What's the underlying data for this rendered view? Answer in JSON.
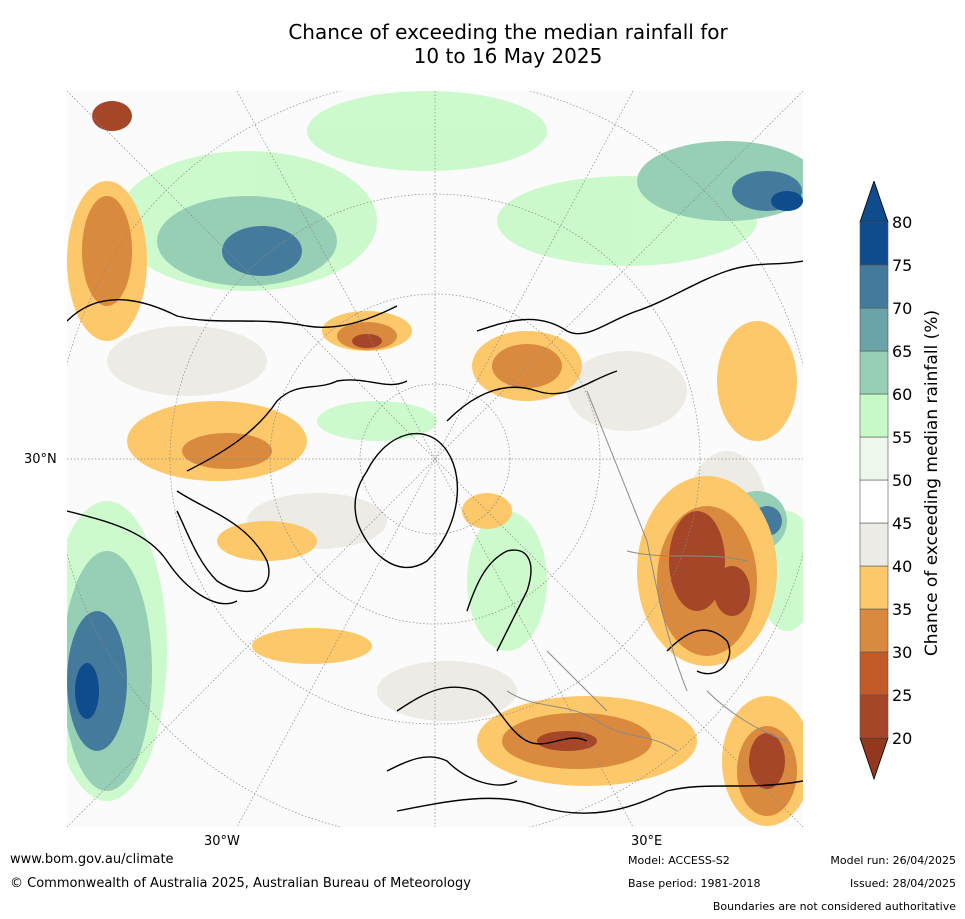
{
  "title_line1": "Chance of exceeding the median rainfall for",
  "title_line2": "10 to 16 May 2025",
  "axis_labels": {
    "lat_30n": "30°N",
    "lon_30w": "30°W",
    "lon_30e": "30°E"
  },
  "colorbar": {
    "title": "Chance of exceeding median rainfall (%)",
    "ticks": [
      "20",
      "25",
      "30",
      "35",
      "40",
      "45",
      "50",
      "55",
      "60",
      "65",
      "70",
      "75",
      "80"
    ],
    "colors": [
      "#93381e",
      "#a54628",
      "#c25a2a",
      "#d98a3e",
      "#fcc869",
      "#ecebe6",
      "#ffffff",
      "#eef7ec",
      "#c8f9c8",
      "#96cfb6",
      "#6aa3a8",
      "#447b9c",
      "#0f4c8e"
    ]
  },
  "footer": {
    "url": "www.bom.gov.au/climate",
    "copyright": "© Commonwealth of Australia 2025, Australian Bureau of Meteorology",
    "model": "Model: ACCESS-S2",
    "base_period": "Base period: 1981-2018",
    "model_run": "Model run: 26/04/2025",
    "issued": "Issued: 28/04/2025",
    "disclaimer": "Boundaries are not considered authoritative"
  }
}
